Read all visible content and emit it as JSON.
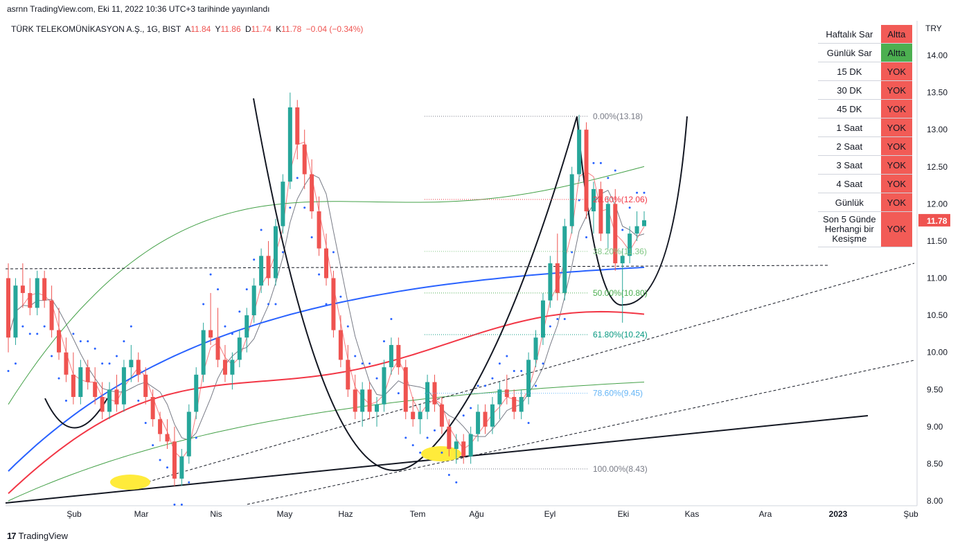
{
  "caption": "asrnn TradingView.com, Eki 11, 2022 10:36 UTC+3 tarihinde yayınlandı",
  "symbol": {
    "name": "TÜRK TELEKOMÜNİKASYON A.Ş., 1G, BIST",
    "open_label": "A",
    "open": "11.84",
    "high_label": "Y",
    "high": "11.86",
    "low_label": "D",
    "low": "11.74",
    "close_label": "K",
    "close": "11.78",
    "change": "−0.04 (−0.34%)"
  },
  "currency": "TRY",
  "panel": [
    {
      "label": "Haftalık Sar",
      "value": "Altta",
      "status": "red"
    },
    {
      "label": "Günlük Sar",
      "value": "Altta",
      "status": "green"
    },
    {
      "label": "15 DK",
      "value": "YOK",
      "status": "red"
    },
    {
      "label": "30 DK",
      "value": "YOK",
      "status": "red"
    },
    {
      "label": "45 DK",
      "value": "YOK",
      "status": "red"
    },
    {
      "label": "1 Saat",
      "value": "YOK",
      "status": "red"
    },
    {
      "label": "2 Saat",
      "value": "YOK",
      "status": "red"
    },
    {
      "label": "3 Saat",
      "value": "YOK",
      "status": "red"
    },
    {
      "label": "4 Saat",
      "value": "YOK",
      "status": "red"
    },
    {
      "label": "Günlük",
      "value": "YOK",
      "status": "red"
    },
    {
      "label": "Son 5 Günde Herhangi bir Kesişme",
      "value": "YOK",
      "status": "red"
    }
  ],
  "footer": "TradingView",
  "colors": {
    "up": "#26a69a",
    "down": "#ef5350",
    "ma_blue": "#2962ff",
    "ma_red": "#f23645",
    "band": "#43a047",
    "fib_grey": "#787b86",
    "highlight": "#ffeb3b"
  },
  "chart_data": {
    "type": "candlestick",
    "ylim": [
      8.0,
      14.3
    ],
    "y_ticks": [
      "14.00",
      "13.50",
      "13.00",
      "12.50",
      "12.00",
      "11.50",
      "11.00",
      "10.50",
      "10.00",
      "9.50",
      "9.00",
      "8.50",
      "8.00"
    ],
    "x_ticks": [
      "Şub",
      "Mar",
      "Nis",
      "May",
      "Haz",
      "Tem",
      "Ağu",
      "Eyl",
      "Eki",
      "Kas",
      "Ara",
      "2023",
      "Şub"
    ],
    "last_price": "11.78",
    "fib_levels": [
      {
        "label": "0.00%(13.18)",
        "price": 13.18,
        "color": "#787b86"
      },
      {
        "label": "23.60%(12.06)",
        "price": 12.06,
        "color": "#f23645"
      },
      {
        "label": "38.20%(11.36)",
        "price": 11.36,
        "color": "#81c784"
      },
      {
        "label": "50.00%(10.80)",
        "price": 10.8,
        "color": "#4caf50"
      },
      {
        "label": "61.80%(10.24)",
        "price": 10.24,
        "color": "#089981"
      },
      {
        "label": "78.60%(9.45)",
        "price": 9.45,
        "color": "#64b5f6"
      },
      {
        "label": "100.00%(8.43)",
        "price": 8.43,
        "color": "#787b86"
      }
    ],
    "candles_ohlc": [
      [
        11.0,
        11.2,
        10.0,
        10.2
      ],
      [
        10.2,
        11.0,
        10.1,
        10.9
      ],
      [
        10.9,
        11.2,
        10.6,
        10.8
      ],
      [
        10.8,
        11.0,
        10.5,
        10.6
      ],
      [
        10.6,
        11.1,
        10.5,
        11.0
      ],
      [
        11.0,
        11.1,
        10.6,
        10.7
      ],
      [
        10.7,
        10.9,
        10.2,
        10.3
      ],
      [
        10.3,
        10.6,
        9.9,
        10.0
      ],
      [
        10.0,
        10.2,
        9.6,
        9.7
      ],
      [
        9.7,
        10.0,
        9.3,
        9.4
      ],
      [
        9.4,
        9.9,
        9.3,
        9.8
      ],
      [
        9.8,
        9.9,
        9.5,
        9.6
      ],
      [
        9.6,
        9.8,
        9.3,
        9.4
      ],
      [
        9.4,
        9.6,
        9.1,
        9.2
      ],
      [
        9.2,
        9.6,
        9.1,
        9.5
      ],
      [
        9.5,
        9.7,
        9.2,
        9.3
      ],
      [
        9.3,
        9.9,
        9.2,
        9.8
      ],
      [
        9.8,
        10.1,
        9.6,
        9.9
      ],
      [
        9.9,
        10.0,
        9.6,
        9.7
      ],
      [
        9.7,
        9.8,
        9.3,
        9.4
      ],
      [
        9.4,
        9.5,
        9.0,
        9.1
      ],
      [
        9.1,
        9.2,
        8.8,
        8.9
      ],
      [
        8.9,
        9.1,
        8.7,
        8.8
      ],
      [
        8.8,
        9.0,
        8.2,
        8.3
      ],
      [
        8.3,
        8.7,
        8.2,
        8.6
      ],
      [
        8.6,
        9.3,
        8.5,
        9.2
      ],
      [
        9.2,
        9.8,
        9.1,
        9.7
      ],
      [
        9.7,
        10.4,
        9.6,
        10.3
      ],
      [
        10.3,
        10.8,
        10.1,
        10.2
      ],
      [
        10.2,
        10.6,
        9.8,
        9.9
      ],
      [
        9.9,
        10.1,
        9.6,
        9.7
      ],
      [
        9.7,
        10.0,
        9.5,
        9.9
      ],
      [
        9.9,
        10.3,
        9.8,
        10.2
      ],
      [
        10.2,
        10.6,
        10.0,
        10.5
      ],
      [
        10.5,
        11.0,
        10.4,
        10.9
      ],
      [
        10.9,
        11.4,
        10.8,
        11.3
      ],
      [
        11.3,
        11.5,
        10.9,
        11.0
      ],
      [
        11.0,
        11.8,
        10.9,
        11.7
      ],
      [
        11.7,
        12.4,
        11.6,
        12.3
      ],
      [
        12.3,
        13.5,
        12.2,
        13.3
      ],
      [
        13.3,
        13.4,
        12.6,
        12.8
      ],
      [
        12.8,
        13.0,
        12.2,
        12.4
      ],
      [
        12.4,
        12.6,
        11.8,
        11.9
      ],
      [
        11.9,
        12.1,
        11.3,
        11.4
      ],
      [
        11.4,
        11.6,
        10.9,
        11.0
      ],
      [
        11.0,
        11.1,
        10.2,
        10.3
      ],
      [
        10.3,
        10.5,
        9.8,
        9.9
      ],
      [
        9.9,
        10.1,
        9.4,
        9.5
      ],
      [
        9.5,
        9.7,
        9.1,
        9.2
      ],
      [
        9.2,
        9.6,
        9.0,
        9.5
      ],
      [
        9.5,
        9.6,
        9.1,
        9.2
      ],
      [
        9.2,
        9.4,
        9.0,
        9.3
      ],
      [
        9.3,
        9.9,
        9.2,
        9.8
      ],
      [
        9.8,
        10.2,
        9.7,
        10.1
      ],
      [
        10.1,
        10.2,
        9.7,
        9.8
      ],
      [
        9.8,
        9.9,
        9.1,
        9.2
      ],
      [
        9.2,
        9.4,
        9.0,
        9.1
      ],
      [
        9.1,
        9.3,
        8.9,
        9.2
      ],
      [
        9.2,
        9.7,
        9.1,
        9.6
      ],
      [
        9.6,
        9.7,
        9.2,
        9.3
      ],
      [
        9.3,
        9.4,
        8.9,
        9.0
      ],
      [
        9.0,
        9.1,
        8.6,
        8.7
      ],
      [
        8.7,
        8.9,
        8.5,
        8.8
      ],
      [
        8.8,
        8.9,
        8.5,
        8.6
      ],
      [
        8.6,
        9.0,
        8.5,
        8.9
      ],
      [
        8.9,
        9.3,
        8.8,
        9.2
      ],
      [
        9.2,
        9.3,
        8.9,
        9.0
      ],
      [
        9.0,
        9.4,
        8.9,
        9.3
      ],
      [
        9.3,
        9.6,
        9.1,
        9.5
      ],
      [
        9.5,
        9.7,
        9.3,
        9.4
      ],
      [
        9.4,
        9.5,
        9.1,
        9.2
      ],
      [
        9.2,
        9.5,
        9.1,
        9.4
      ],
      [
        9.4,
        10.0,
        9.3,
        9.9
      ],
      [
        9.9,
        10.3,
        9.8,
        10.2
      ],
      [
        10.2,
        10.8,
        10.1,
        10.7
      ],
      [
        10.7,
        11.3,
        10.6,
        11.2
      ],
      [
        11.2,
        11.6,
        10.7,
        10.8
      ],
      [
        10.8,
        11.8,
        10.7,
        11.7
      ],
      [
        11.7,
        12.5,
        11.6,
        12.4
      ],
      [
        12.4,
        13.2,
        12.3,
        13.0
      ],
      [
        13.0,
        13.1,
        11.8,
        11.9
      ],
      [
        11.9,
        12.3,
        11.6,
        12.2
      ],
      [
        12.2,
        12.3,
        11.5,
        11.6
      ],
      [
        11.6,
        12.1,
        11.4,
        12.0
      ],
      [
        12.0,
        12.2,
        11.1,
        11.2
      ],
      [
        11.2,
        11.4,
        10.4,
        11.3
      ],
      [
        11.3,
        11.7,
        11.2,
        11.6
      ],
      [
        11.6,
        11.9,
        11.5,
        11.7
      ],
      [
        11.7,
        11.9,
        11.7,
        11.78
      ]
    ]
  }
}
